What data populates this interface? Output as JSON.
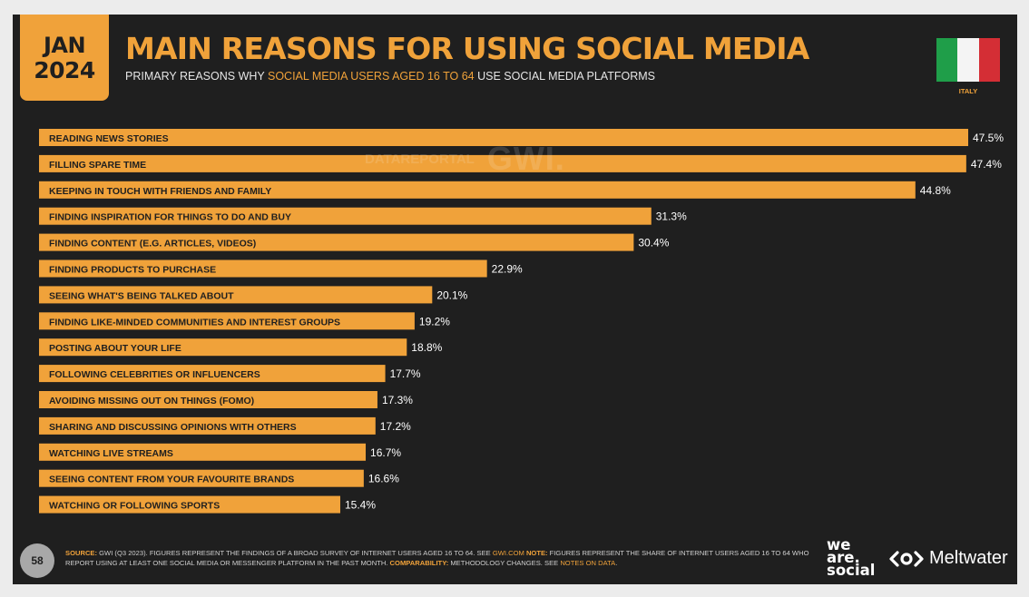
{
  "header": {
    "date_month": "JAN",
    "date_year": "2024",
    "title": "MAIN REASONS FOR USING SOCIAL MEDIA",
    "subtitle_pre": "PRIMARY REASONS WHY ",
    "subtitle_highlight": "SOCIAL MEDIA USERS AGED 16 TO 64",
    "subtitle_post": " USE SOCIAL MEDIA PLATFORMS",
    "country": "ITALY"
  },
  "watermark": {
    "left": "DATAREPORTAL",
    "right": "GWI."
  },
  "chart_data": {
    "type": "bar",
    "orientation": "horizontal",
    "categories": [
      "READING NEWS STORIES",
      "FILLING SPARE TIME",
      "KEEPING IN TOUCH WITH FRIENDS AND FAMILY",
      "FINDING INSPIRATION FOR THINGS TO DO AND BUY",
      "FINDING CONTENT (E.G. ARTICLES, VIDEOS)",
      "FINDING PRODUCTS TO PURCHASE",
      "SEEING WHAT'S BEING TALKED ABOUT",
      "FINDING LIKE-MINDED COMMUNITIES AND INTEREST GROUPS",
      "POSTING ABOUT YOUR LIFE",
      "FOLLOWING CELEBRITIES OR INFLUENCERS",
      "AVOIDING MISSING OUT ON THINGS (FOMO)",
      "SHARING AND DISCUSSING OPINIONS WITH OTHERS",
      "WATCHING LIVE STREAMS",
      "SEEING CONTENT FROM YOUR FAVOURITE BRANDS",
      "WATCHING OR FOLLOWING SPORTS"
    ],
    "values": [
      47.5,
      47.4,
      44.8,
      31.3,
      30.4,
      22.9,
      20.1,
      19.2,
      18.8,
      17.7,
      17.3,
      17.2,
      16.7,
      16.6,
      15.4
    ],
    "value_labels": [
      "47.5%",
      "47.4%",
      "44.8%",
      "31.3%",
      "30.4%",
      "22.9%",
      "20.1%",
      "19.2%",
      "18.8%",
      "17.7%",
      "17.3%",
      "17.2%",
      "16.7%",
      "16.6%",
      "15.4%"
    ],
    "xlim": [
      0,
      47.5
    ],
    "grid": false,
    "legend": "none",
    "bar_color": "#f0a23a"
  },
  "footer": {
    "page_number": "58",
    "source_label": "SOURCE:",
    "source_text": " GWI (Q3 2023). FIGURES REPRESENT THE FINDINGS OF A BROAD SURVEY OF INTERNET USERS AGED 16 TO 64. SEE ",
    "source_link": "GWI.COM",
    "note_label": " NOTE:",
    "note_text": " FIGURES REPRESENT THE SHARE OF INTERNET USERS AGED 16 TO 64 WHO REPORT USING AT LEAST ONE SOCIAL MEDIA OR MESSENGER PLATFORM IN THE PAST MONTH. ",
    "comparability_label": "COMPARABILITY:",
    "comparability_text": " METHODOLOGY CHANGES. SEE ",
    "comparability_link": "NOTES ON DATA",
    "comparability_end": ".",
    "brand_1_line1": "we",
    "brand_1_line2": "are.",
    "brand_1_line3": "social",
    "brand_2": "Meltwater"
  },
  "colors": {
    "background": "#1f1f1f",
    "accent": "#f0a23a",
    "flag_green": "#1f9e49",
    "flag_white": "#f4f4f4",
    "flag_red": "#d42e35"
  }
}
